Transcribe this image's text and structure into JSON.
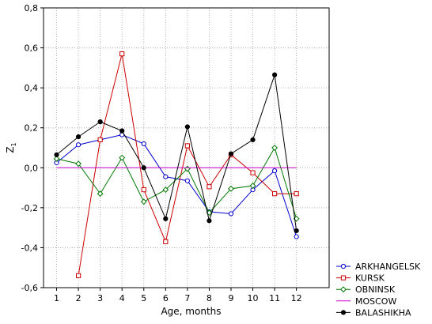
{
  "chart_data": {
    "type": "line",
    "xlabel": "Age, months",
    "ylabel": "Z",
    "ylabel_sub": "1",
    "x": [
      1,
      2,
      3,
      4,
      5,
      6,
      7,
      8,
      9,
      10,
      11,
      12
    ],
    "xlim": [
      0.4,
      13.5
    ],
    "ylim": [
      -0.6,
      0.8
    ],
    "yticks": [
      -0.6,
      -0.4,
      -0.2,
      0.0,
      0.2,
      0.4,
      0.6,
      0.8
    ],
    "ytick_labels": [
      "-0,6",
      "-0,4",
      "-0,2",
      "0,0",
      "0,2",
      "0,4",
      "0,6",
      "0,8"
    ],
    "xtick_labels": [
      "1",
      "2",
      "3",
      "4",
      "5",
      "6",
      "7",
      "8",
      "9",
      "10",
      "11",
      "12"
    ],
    "grid": true,
    "legend_position": "bottom-right",
    "series": [
      {
        "name": "ARKHANGELSK",
        "color": "#0000cc",
        "marker": "circle-open",
        "x": [
          1,
          2,
          3,
          4,
          5,
          6,
          7,
          8,
          9,
          10,
          11,
          12
        ],
        "values": [
          0.025,
          0.115,
          0.14,
          0.165,
          0.12,
          -0.045,
          -0.065,
          -0.22,
          -0.23,
          -0.11,
          -0.015,
          -0.345
        ]
      },
      {
        "name": "KURSK",
        "color": "#cc0000",
        "marker": "square-open",
        "x": [
          2,
          3,
          4,
          5,
          6,
          7,
          8,
          9,
          10,
          11,
          12
        ],
        "values": [
          -0.54,
          0.14,
          0.57,
          -0.11,
          -0.37,
          0.11,
          -0.095,
          0.065,
          -0.025,
          -0.13,
          -0.13
        ]
      },
      {
        "name": "OBNINSK",
        "color": "#007700",
        "marker": "diamond-open",
        "x": [
          1,
          2,
          3,
          4,
          5,
          6,
          7,
          8,
          9,
          10,
          11,
          12
        ],
        "values": [
          0.045,
          0.02,
          -0.13,
          0.05,
          -0.17,
          -0.11,
          -0.005,
          -0.225,
          -0.105,
          -0.09,
          0.1,
          -0.255
        ]
      },
      {
        "name": "MOSCOW",
        "color": "#cc00cc",
        "marker": "none",
        "x": [
          1,
          2,
          3,
          4,
          5,
          6,
          7,
          8,
          9,
          10,
          11,
          12
        ],
        "values": [
          0,
          0,
          0,
          0,
          0,
          0,
          0,
          0,
          0,
          0,
          0,
          0
        ]
      },
      {
        "name": "BALASHIKHA",
        "color": "#000000",
        "marker": "circle-filled",
        "x": [
          1,
          2,
          3,
          4,
          5,
          6,
          7,
          8,
          9,
          10,
          11,
          12
        ],
        "values": [
          0.065,
          0.155,
          0.23,
          0.185,
          0.0,
          -0.255,
          0.205,
          -0.265,
          0.07,
          0.14,
          0.465,
          -0.315
        ]
      }
    ]
  }
}
